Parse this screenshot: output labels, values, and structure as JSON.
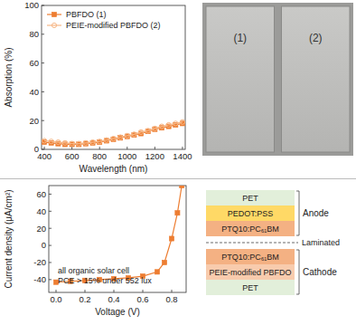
{
  "chart_data": [
    {
      "type": "line",
      "x_label": "Wavelength (nm)",
      "y_label": "Absorption (%)",
      "x": [
        400,
        450,
        500,
        550,
        600,
        650,
        700,
        750,
        800,
        850,
        900,
        950,
        1000,
        1050,
        1100,
        1150,
        1200,
        1250,
        1300,
        1350,
        1400
      ],
      "series": [
        {
          "name": "PBFDO (1)",
          "color": "#ed7d31",
          "marker": "square",
          "line_style": "solid",
          "values": [
            5,
            4.5,
            4,
            3.5,
            3.5,
            3.5,
            4,
            4.5,
            5,
            6,
            7,
            8,
            9,
            10,
            11,
            12.5,
            14,
            15,
            16,
            17,
            18
          ]
        },
        {
          "name": "PEIE-modified PBFDO (2)",
          "color": "#f7b887",
          "marker": "circle-open",
          "line_style": "solid",
          "values": [
            6,
            5.5,
            5,
            4.5,
            4,
            4,
            4.5,
            5,
            5.5,
            6.5,
            7.5,
            8.5,
            9.5,
            10.5,
            12,
            13,
            14.5,
            16,
            17,
            18,
            19
          ]
        }
      ],
      "xlim": [
        380,
        1420
      ],
      "xticks": [
        400,
        600,
        800,
        1000,
        1200,
        1400
      ],
      "ylim": [
        0,
        100
      ],
      "yticks": [
        0,
        20,
        40,
        60,
        80,
        100
      ],
      "legend": "upper-left"
    },
    {
      "type": "line",
      "x_label": "Voltage (V)",
      "y_label": "Current density (μA/cm²)",
      "annotations": [
        "all organic solar cell",
        "PCE > 15% under 552 lux"
      ],
      "x": [
        0,
        0.1,
        0.2,
        0.3,
        0.4,
        0.5,
        0.6,
        0.7,
        0.75,
        0.8,
        0.84,
        0.87
      ],
      "series": [
        {
          "color": "#ed7d31",
          "marker": "square",
          "line_style": "solid",
          "values": [
            -43,
            -42,
            -41,
            -40,
            -39,
            -38,
            -36,
            -31,
            -20,
            8,
            38,
            70
          ]
        }
      ],
      "xlim": [
        -0.05,
        0.9
      ],
      "xticks": [
        {
          "value": 0,
          "label": "0.0"
        },
        0.2,
        0.4,
        0.6,
        0.8
      ],
      "ylim": [
        -55,
        70
      ],
      "yticks": [
        -40,
        -20,
        0,
        20,
        40,
        60
      ]
    }
  ],
  "photo": {
    "labels": [
      "(1)",
      "(2)"
    ]
  },
  "diagram": {
    "junction": "Laminated",
    "groups": [
      {
        "label": "Anode",
        "layers": [
          {
            "name": "PET",
            "color": "#e2efda"
          },
          {
            "name": "PEDOT:PSS",
            "color": "#ffd966"
          },
          {
            "name": "PTQ10:PC₆₁BM",
            "color": "#f4b183"
          }
        ]
      },
      {
        "label": "Cathode",
        "layers": [
          {
            "name": "PTQ10:PC₆₁BM",
            "color": "#f4b183"
          },
          {
            "name": "PEIE-modified PBFDO",
            "color": "#f8cbad"
          },
          {
            "name": "PET",
            "color": "#e2efda"
          }
        ]
      }
    ]
  }
}
